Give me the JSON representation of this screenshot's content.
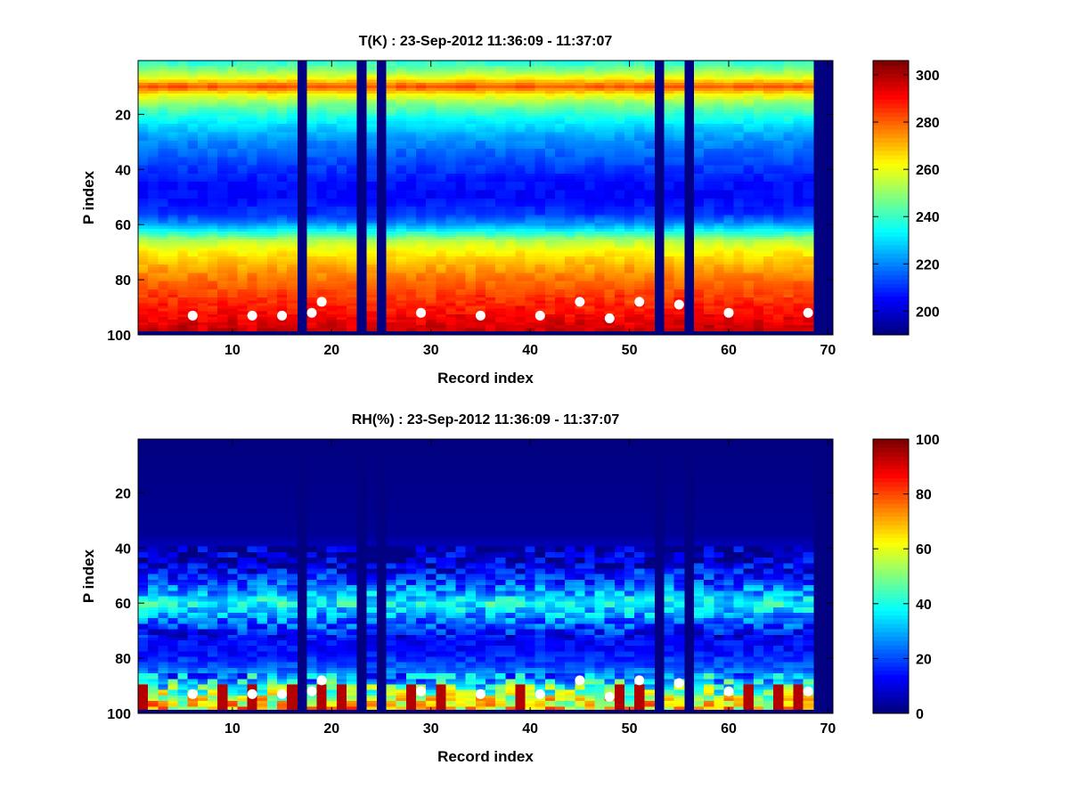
{
  "chart_data": [
    {
      "type": "heatmap",
      "title": "T(K) : 23-Sep-2012 11:36:09 - 11:37:07",
      "xlabel": "Record index",
      "ylabel": "P index",
      "xlim": [
        0.5,
        70.5
      ],
      "ylim": [
        100,
        0.5
      ],
      "y_axis_reversed": true,
      "x_ticks": [
        10,
        20,
        30,
        40,
        50,
        60,
        70
      ],
      "y_ticks": [
        20,
        40,
        60,
        80,
        100
      ],
      "colormap": "jet",
      "clim": [
        190,
        306
      ],
      "colorbar_ticks": [
        200,
        220,
        240,
        260,
        280,
        300
      ],
      "missing_records": [
        17,
        23,
        25,
        53,
        56,
        69,
        70
      ],
      "valid_p_range": [
        1,
        98
      ],
      "profile_K": [
        {
          "p": 1,
          "value": 237
        },
        {
          "p": 4,
          "value": 249
        },
        {
          "p": 7,
          "value": 262
        },
        {
          "p": 9,
          "value": 277
        },
        {
          "p": 10,
          "value": 282
        },
        {
          "p": 11,
          "value": 276
        },
        {
          "p": 13,
          "value": 262
        },
        {
          "p": 16,
          "value": 250
        },
        {
          "p": 20,
          "value": 238
        },
        {
          "p": 25,
          "value": 228
        },
        {
          "p": 30,
          "value": 220
        },
        {
          "p": 38,
          "value": 212
        },
        {
          "p": 45,
          "value": 206
        },
        {
          "p": 50,
          "value": 205
        },
        {
          "p": 56,
          "value": 210
        },
        {
          "p": 60,
          "value": 222
        },
        {
          "p": 63,
          "value": 238
        },
        {
          "p": 66,
          "value": 254
        },
        {
          "p": 70,
          "value": 264
        },
        {
          "p": 74,
          "value": 270
        },
        {
          "p": 78,
          "value": 276
        },
        {
          "p": 82,
          "value": 281
        },
        {
          "p": 86,
          "value": 285
        },
        {
          "p": 90,
          "value": 289
        },
        {
          "p": 94,
          "value": 293
        },
        {
          "p": 98,
          "value": 298
        }
      ],
      "markers": [
        {
          "record": 6,
          "p": 93
        },
        {
          "record": 12,
          "p": 93
        },
        {
          "record": 15,
          "p": 93
        },
        {
          "record": 18,
          "p": 92
        },
        {
          "record": 19,
          "p": 88
        },
        {
          "record": 29,
          "p": 92
        },
        {
          "record": 35,
          "p": 93
        },
        {
          "record": 41,
          "p": 93
        },
        {
          "record": 45,
          "p": 88
        },
        {
          "record": 48,
          "p": 94
        },
        {
          "record": 51,
          "p": 88
        },
        {
          "record": 55,
          "p": 89
        },
        {
          "record": 60,
          "p": 92
        },
        {
          "record": 68,
          "p": 92
        }
      ]
    },
    {
      "type": "heatmap",
      "title": "RH(%) : 23-Sep-2012 11:36:09 - 11:37:07",
      "xlabel": "Record index",
      "ylabel": "P index",
      "xlim": [
        0.5,
        70.5
      ],
      "ylim": [
        100,
        0.5
      ],
      "y_axis_reversed": true,
      "x_ticks": [
        10,
        20,
        30,
        40,
        50,
        60,
        70
      ],
      "y_ticks": [
        20,
        40,
        60,
        80,
        100
      ],
      "colormap": "jet",
      "clim": [
        0,
        100
      ],
      "colorbar_ticks": [
        0,
        20,
        40,
        60,
        80,
        100
      ],
      "missing_records": [
        17,
        23,
        25,
        53,
        56,
        69,
        70
      ],
      "valid_p_range": [
        1,
        98
      ],
      "profile_pct": [
        {
          "p": 1,
          "value": 0
        },
        {
          "p": 35,
          "value": 2
        },
        {
          "p": 40,
          "value": 6
        },
        {
          "p": 46,
          "value": 10
        },
        {
          "p": 52,
          "value": 18
        },
        {
          "p": 56,
          "value": 28
        },
        {
          "p": 60,
          "value": 38
        },
        {
          "p": 64,
          "value": 30
        },
        {
          "p": 68,
          "value": 20
        },
        {
          "p": 72,
          "value": 12
        },
        {
          "p": 78,
          "value": 14
        },
        {
          "p": 84,
          "value": 22
        },
        {
          "p": 88,
          "value": 32
        },
        {
          "p": 92,
          "value": 48
        },
        {
          "p": 96,
          "value": 62
        },
        {
          "p": 98,
          "value": 66
        }
      ],
      "markers": [
        {
          "record": 6,
          "p": 93
        },
        {
          "record": 12,
          "p": 93
        },
        {
          "record": 15,
          "p": 93
        },
        {
          "record": 18,
          "p": 92
        },
        {
          "record": 19,
          "p": 88
        },
        {
          "record": 29,
          "p": 92
        },
        {
          "record": 35,
          "p": 93
        },
        {
          "record": 41,
          "p": 93
        },
        {
          "record": 45,
          "p": 88
        },
        {
          "record": 48,
          "p": 94
        },
        {
          "record": 51,
          "p": 88
        },
        {
          "record": 55,
          "p": 89
        },
        {
          "record": 60,
          "p": 92
        },
        {
          "record": 68,
          "p": 92
        }
      ]
    }
  ]
}
